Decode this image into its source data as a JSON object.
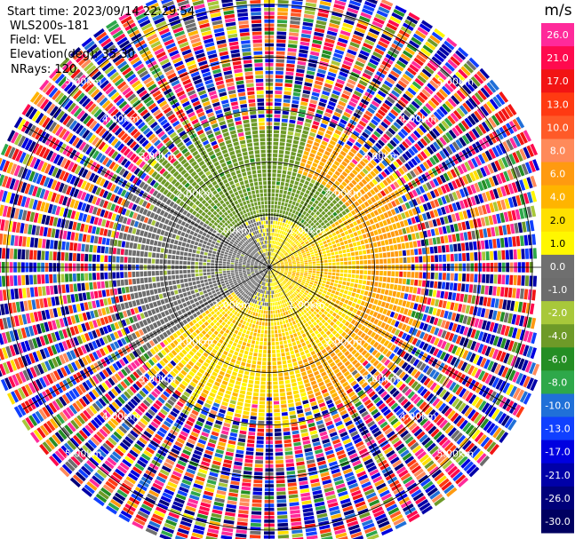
{
  "info": {
    "start_time": "Start time: 2023/09/14 22:29:54",
    "instrument": "WLS200s-181",
    "field": "Field: VEL",
    "elevation": "Elevation(deg): 35.30",
    "nrays": "NRays: 120"
  },
  "colorbar": {
    "unit": "m/s",
    "ticks": [
      "26.0",
      "21.0",
      "17.0",
      "13.0",
      "10.0",
      "8.0",
      "6.0",
      "4.0",
      "2.0",
      "1.0",
      "0.0",
      "-1.0",
      "-2.0",
      "-4.0",
      "-6.0",
      "-8.0",
      "-10.0",
      "-13.0",
      "-17.0",
      "-21.0",
      "-26.0",
      "-30.0"
    ],
    "colors": [
      "#ff2a9a",
      "#ff0a4e",
      "#f21414",
      "#ff3a12",
      "#ff5a28",
      "#ff8a5a",
      "#ff9a10",
      "#ffb400",
      "#ffe000",
      "#fff700",
      "#6f6f6f",
      "#6c6c6c",
      "#a8c83a",
      "#6e9a28",
      "#248e24",
      "#2ea84a",
      "#2070d8",
      "#1040ff",
      "#0000e0",
      "#0000a8",
      "#00007a",
      "#000060"
    ]
  },
  "chart_data": {
    "type": "heatmap",
    "projection": "polar PPI",
    "field": "VEL",
    "units": "m/s",
    "n_rays": 120,
    "elevation_deg": 35.3,
    "range_rings": [
      {
        "label": "1.00km",
        "km": 1
      },
      {
        "label": "2.00km",
        "km": 2
      },
      {
        "label": "3.00km",
        "km": 3
      },
      {
        "label": "4.00km",
        "km": 4
      },
      {
        "label": "5.00km",
        "km": 5
      }
    ],
    "max_range_km": 5.6,
    "value_range": [
      -30,
      26
    ],
    "pattern": {
      "inner_east_half": "positive ~1–2 m/s (yellow)",
      "inner_west_half": "negative ~-1 to -4 m/s (grey/olive)",
      "north_sector_1_to_3km": "negative ~-4 to -6 m/s (green)",
      "south_sector_1_to_3km": "positive ~1–2 m/s (yellow)",
      "beyond_3km": "noise across full color range"
    }
  }
}
